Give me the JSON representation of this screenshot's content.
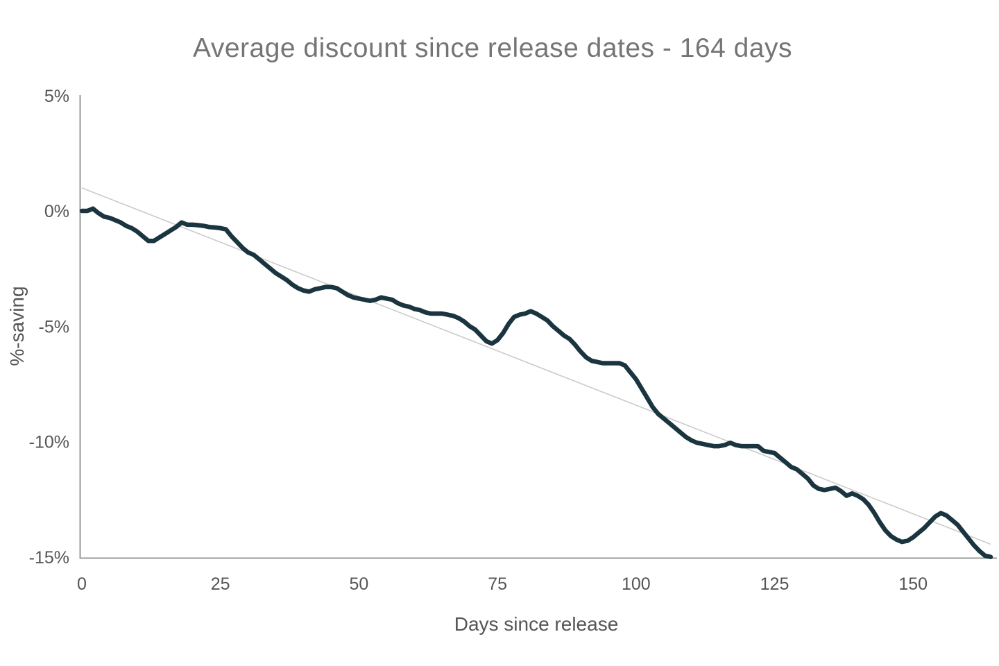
{
  "page": {
    "background": "#ffffff"
  },
  "chart_data": {
    "type": "line",
    "title": "Average discount since release dates - 164 days",
    "xlabel": "Days since release",
    "ylabel": "%-saving",
    "xlim": [
      0,
      164
    ],
    "ylim": [
      -15,
      5
    ],
    "grid": false,
    "legend": "none",
    "axis_color": "#999999",
    "text_colors": {
      "title": "#757575",
      "axis_labels": "#555555",
      "tick_labels": "#555555"
    },
    "xticks": {
      "values": [
        0,
        25,
        50,
        75,
        100,
        125,
        150
      ],
      "labels": [
        "0",
        "25",
        "50",
        "75",
        "100",
        "125",
        "150"
      ]
    },
    "yticks": {
      "values": [
        5,
        0,
        -5,
        -10,
        -15
      ],
      "labels": [
        "5%",
        "0%",
        "-5%",
        "-10%",
        "-15%"
      ]
    },
    "series": [
      {
        "name": "average-discount-pct",
        "type": "line",
        "color": "#1b3540",
        "x_start": 0,
        "x_step": 1,
        "x_unit": "days since release",
        "y_unit": "%-saving",
        "values": [
          0.0,
          0.0,
          0.1,
          -0.1,
          -0.25,
          -0.3,
          -0.4,
          -0.5,
          -0.65,
          -0.75,
          -0.9,
          -1.1,
          -1.3,
          -1.3,
          -1.15,
          -1.0,
          -0.85,
          -0.7,
          -0.5,
          -0.6,
          -0.6,
          -0.62,
          -0.65,
          -0.7,
          -0.72,
          -0.75,
          -0.8,
          -1.1,
          -1.35,
          -1.6,
          -1.8,
          -1.9,
          -2.1,
          -2.3,
          -2.5,
          -2.7,
          -2.85,
          -3.0,
          -3.2,
          -3.35,
          -3.45,
          -3.5,
          -3.4,
          -3.35,
          -3.3,
          -3.3,
          -3.35,
          -3.5,
          -3.65,
          -3.75,
          -3.8,
          -3.85,
          -3.9,
          -3.85,
          -3.75,
          -3.8,
          -3.85,
          -4.0,
          -4.1,
          -4.15,
          -4.25,
          -4.3,
          -4.4,
          -4.45,
          -4.45,
          -4.45,
          -4.5,
          -4.55,
          -4.65,
          -4.8,
          -5.0,
          -5.15,
          -5.4,
          -5.65,
          -5.75,
          -5.6,
          -5.3,
          -4.9,
          -4.6,
          -4.5,
          -4.45,
          -4.35,
          -4.45,
          -4.6,
          -4.75,
          -5.0,
          -5.2,
          -5.4,
          -5.55,
          -5.8,
          -6.1,
          -6.35,
          -6.5,
          -6.55,
          -6.6,
          -6.6,
          -6.6,
          -6.6,
          -6.7,
          -7.0,
          -7.3,
          -7.7,
          -8.1,
          -8.5,
          -8.8,
          -9.0,
          -9.2,
          -9.4,
          -9.6,
          -9.8,
          -9.95,
          -10.05,
          -10.1,
          -10.15,
          -10.2,
          -10.2,
          -10.15,
          -10.05,
          -10.15,
          -10.2,
          -10.2,
          -10.2,
          -10.2,
          -10.4,
          -10.45,
          -10.5,
          -10.7,
          -10.9,
          -11.1,
          -11.2,
          -11.4,
          -11.6,
          -11.9,
          -12.05,
          -12.1,
          -12.05,
          -12.0,
          -12.15,
          -12.35,
          -12.25,
          -12.35,
          -12.5,
          -12.75,
          -13.1,
          -13.5,
          -13.85,
          -14.1,
          -14.25,
          -14.35,
          -14.3,
          -14.15,
          -13.95,
          -13.75,
          -13.5,
          -13.25,
          -13.1,
          -13.2,
          -13.4,
          -13.6,
          -13.9,
          -14.2,
          -14.5,
          -14.75,
          -14.95,
          -15.0
        ]
      }
    ],
    "trendline": {
      "name": "linear-trend",
      "color": "#cbcbcb",
      "points": [
        [
          0,
          1.0
        ],
        [
          164,
          -14.45
        ]
      ]
    }
  }
}
